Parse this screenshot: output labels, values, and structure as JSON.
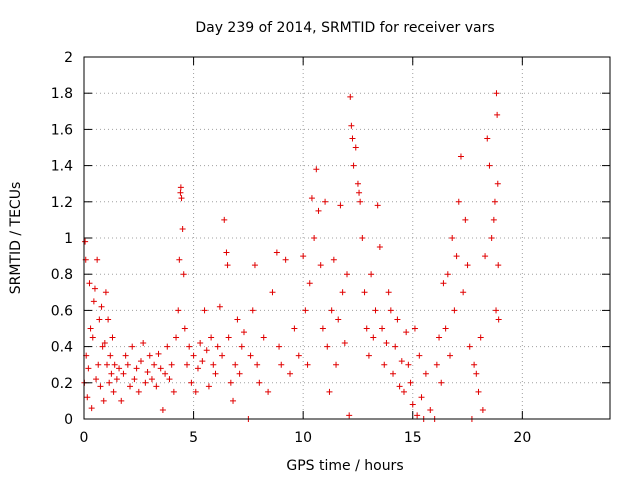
{
  "chart_data": {
    "type": "scatter",
    "title": "Day 239 of 2014, SRMTID for receiver vars",
    "xlabel": "GPS time / hours",
    "ylabel": "SRMTID / TECUs",
    "xlim": [
      0,
      24
    ],
    "ylim": [
      0,
      2
    ],
    "x_ticks": [
      0,
      5,
      10,
      15,
      20
    ],
    "y_ticks": [
      0,
      0.2,
      0.4,
      0.6,
      0.8,
      1,
      1.2,
      1.4,
      1.6,
      1.8,
      2
    ],
    "x_tick_labels": [
      "0",
      "5",
      "10",
      "15",
      "20"
    ],
    "y_tick_labels": [
      "0",
      "0.2",
      "0.4",
      "0.6",
      "0.8",
      "1",
      "1.2",
      "1.4",
      "1.6",
      "1.8",
      "2"
    ],
    "grid": true,
    "series": [
      {
        "name": "SRMTID",
        "marker": "plus",
        "color": "#e00000",
        "points": [
          [
            0.02,
            0.2
          ],
          [
            0.05,
            0.98
          ],
          [
            0.08,
            0.88
          ],
          [
            0.1,
            0.35
          ],
          [
            0.15,
            0.12
          ],
          [
            0.2,
            0.28
          ],
          [
            0.25,
            0.75
          ],
          [
            0.3,
            0.5
          ],
          [
            0.35,
            0.06
          ],
          [
            0.4,
            0.45
          ],
          [
            0.45,
            0.65
          ],
          [
            0.5,
            0.72
          ],
          [
            0.55,
            0.22
          ],
          [
            0.6,
            0.88
          ],
          [
            0.65,
            0.3
          ],
          [
            0.7,
            0.55
          ],
          [
            0.75,
            0.18
          ],
          [
            0.8,
            0.62
          ],
          [
            0.85,
            0.4
          ],
          [
            0.9,
            0.1
          ],
          [
            0.95,
            0.42
          ],
          [
            1.0,
            0.7
          ],
          [
            1.05,
            0.3
          ],
          [
            1.1,
            0.55
          ],
          [
            1.15,
            0.2
          ],
          [
            1.2,
            0.35
          ],
          [
            1.25,
            0.25
          ],
          [
            1.3,
            0.45
          ],
          [
            1.35,
            0.15
          ],
          [
            1.4,
            0.3
          ],
          [
            1.5,
            0.22
          ],
          [
            1.6,
            0.28
          ],
          [
            1.7,
            0.1
          ],
          [
            1.8,
            0.25
          ],
          [
            1.9,
            0.35
          ],
          [
            2.0,
            0.3
          ],
          [
            2.1,
            0.18
          ],
          [
            2.2,
            0.4
          ],
          [
            2.3,
            0.22
          ],
          [
            2.4,
            0.28
          ],
          [
            2.5,
            0.15
          ],
          [
            2.6,
            0.32
          ],
          [
            2.7,
            0.42
          ],
          [
            2.8,
            0.2
          ],
          [
            2.9,
            0.26
          ],
          [
            3.0,
            0.35
          ],
          [
            3.1,
            0.22
          ],
          [
            3.2,
            0.3
          ],
          [
            3.3,
            0.18
          ],
          [
            3.4,
            0.36
          ],
          [
            3.5,
            0.28
          ],
          [
            3.6,
            0.05
          ],
          [
            3.7,
            0.25
          ],
          [
            3.8,
            0.4
          ],
          [
            3.9,
            0.22
          ],
          [
            4.0,
            0.3
          ],
          [
            4.1,
            0.15
          ],
          [
            4.2,
            0.45
          ],
          [
            4.3,
            0.6
          ],
          [
            4.35,
            0.88
          ],
          [
            4.4,
            1.25
          ],
          [
            4.42,
            1.28
          ],
          [
            4.45,
            1.22
          ],
          [
            4.5,
            1.05
          ],
          [
            4.55,
            0.8
          ],
          [
            4.6,
            0.5
          ],
          [
            4.7,
            0.3
          ],
          [
            4.8,
            0.4
          ],
          [
            4.9,
            0.2
          ],
          [
            5.0,
            0.35
          ],
          [
            5.1,
            0.15
          ],
          [
            5.2,
            0.28
          ],
          [
            5.3,
            0.42
          ],
          [
            5.4,
            0.32
          ],
          [
            5.5,
            0.6
          ],
          [
            5.6,
            0.38
          ],
          [
            5.7,
            0.18
          ],
          [
            5.8,
            0.45
          ],
          [
            5.9,
            0.3
          ],
          [
            6.0,
            0.25
          ],
          [
            6.1,
            0.4
          ],
          [
            6.2,
            0.62
          ],
          [
            6.3,
            0.35
          ],
          [
            6.4,
            1.1
          ],
          [
            6.5,
            0.92
          ],
          [
            6.55,
            0.85
          ],
          [
            6.6,
            0.45
          ],
          [
            6.7,
            0.2
          ],
          [
            6.8,
            0.1
          ],
          [
            6.9,
            0.3
          ],
          [
            7.0,
            0.55
          ],
          [
            7.1,
            0.25
          ],
          [
            7.2,
            0.4
          ],
          [
            7.3,
            0.48
          ],
          [
            7.5,
            0.0
          ],
          [
            7.6,
            0.35
          ],
          [
            7.7,
            0.6
          ],
          [
            7.8,
            0.85
          ],
          [
            7.9,
            0.3
          ],
          [
            8.0,
            0.2
          ],
          [
            8.2,
            0.45
          ],
          [
            8.4,
            0.15
          ],
          [
            8.6,
            0.7
          ],
          [
            8.8,
            0.92
          ],
          [
            8.9,
            0.4
          ],
          [
            9.0,
            0.3
          ],
          [
            9.2,
            0.88
          ],
          [
            9.4,
            0.25
          ],
          [
            9.6,
            0.5
          ],
          [
            9.8,
            0.35
          ],
          [
            10.0,
            0.9
          ],
          [
            10.1,
            0.6
          ],
          [
            10.2,
            0.3
          ],
          [
            10.3,
            0.75
          ],
          [
            10.4,
            1.22
          ],
          [
            10.5,
            1.0
          ],
          [
            10.6,
            1.38
          ],
          [
            10.7,
            1.15
          ],
          [
            10.8,
            0.85
          ],
          [
            10.9,
            0.5
          ],
          [
            11.0,
            1.2
          ],
          [
            11.1,
            0.4
          ],
          [
            11.2,
            0.15
          ],
          [
            11.3,
            0.6
          ],
          [
            11.4,
            0.88
          ],
          [
            11.5,
            0.3
          ],
          [
            11.6,
            0.55
          ],
          [
            11.7,
            1.18
          ],
          [
            11.8,
            0.7
          ],
          [
            11.9,
            0.42
          ],
          [
            12.0,
            0.8
          ],
          [
            12.1,
            0.02
          ],
          [
            12.15,
            1.78
          ],
          [
            12.2,
            1.62
          ],
          [
            12.25,
            1.55
          ],
          [
            12.3,
            1.4
          ],
          [
            12.4,
            1.5
          ],
          [
            12.5,
            1.3
          ],
          [
            12.55,
            1.25
          ],
          [
            12.6,
            1.2
          ],
          [
            12.7,
            1.0
          ],
          [
            12.8,
            0.7
          ],
          [
            12.9,
            0.5
          ],
          [
            13.0,
            0.35
          ],
          [
            13.1,
            0.8
          ],
          [
            13.2,
            0.45
          ],
          [
            13.3,
            0.6
          ],
          [
            13.4,
            1.18
          ],
          [
            13.5,
            0.95
          ],
          [
            13.6,
            0.5
          ],
          [
            13.7,
            0.3
          ],
          [
            13.8,
            0.42
          ],
          [
            13.9,
            0.7
          ],
          [
            14.0,
            0.6
          ],
          [
            14.1,
            0.25
          ],
          [
            14.2,
            0.4
          ],
          [
            14.3,
            0.55
          ],
          [
            14.4,
            0.18
          ],
          [
            14.5,
            0.32
          ],
          [
            14.6,
            0.15
          ],
          [
            14.7,
            0.48
          ],
          [
            14.8,
            0.3
          ],
          [
            14.9,
            0.2
          ],
          [
            15.0,
            0.08
          ],
          [
            15.1,
            0.5
          ],
          [
            15.2,
            0.02
          ],
          [
            15.3,
            0.35
          ],
          [
            15.4,
            0.12
          ],
          [
            15.5,
            0.0
          ],
          [
            15.6,
            0.25
          ],
          [
            15.8,
            0.05
          ],
          [
            16.0,
            0.0
          ],
          [
            16.1,
            0.3
          ],
          [
            16.2,
            0.45
          ],
          [
            16.3,
            0.2
          ],
          [
            16.4,
            0.75
          ],
          [
            16.5,
            0.5
          ],
          [
            16.6,
            0.8
          ],
          [
            16.7,
            0.35
          ],
          [
            16.8,
            1.0
          ],
          [
            16.9,
            0.6
          ],
          [
            17.0,
            0.9
          ],
          [
            17.1,
            1.2
          ],
          [
            17.2,
            1.45
          ],
          [
            17.3,
            0.7
          ],
          [
            17.4,
            1.1
          ],
          [
            17.5,
            0.85
          ],
          [
            17.6,
            0.4
          ],
          [
            17.7,
            0.0
          ],
          [
            17.8,
            0.3
          ],
          [
            17.9,
            0.25
          ],
          [
            18.0,
            0.15
          ],
          [
            18.1,
            0.45
          ],
          [
            18.2,
            0.05
          ],
          [
            18.3,
            0.9
          ],
          [
            18.4,
            1.55
          ],
          [
            18.5,
            1.4
          ],
          [
            18.6,
            1.0
          ],
          [
            18.7,
            1.1
          ],
          [
            18.75,
            1.2
          ],
          [
            18.8,
            0.6
          ],
          [
            18.82,
            1.8
          ],
          [
            18.85,
            1.68
          ],
          [
            18.88,
            1.3
          ],
          [
            18.9,
            0.85
          ],
          [
            18.92,
            0.55
          ]
        ]
      }
    ]
  }
}
